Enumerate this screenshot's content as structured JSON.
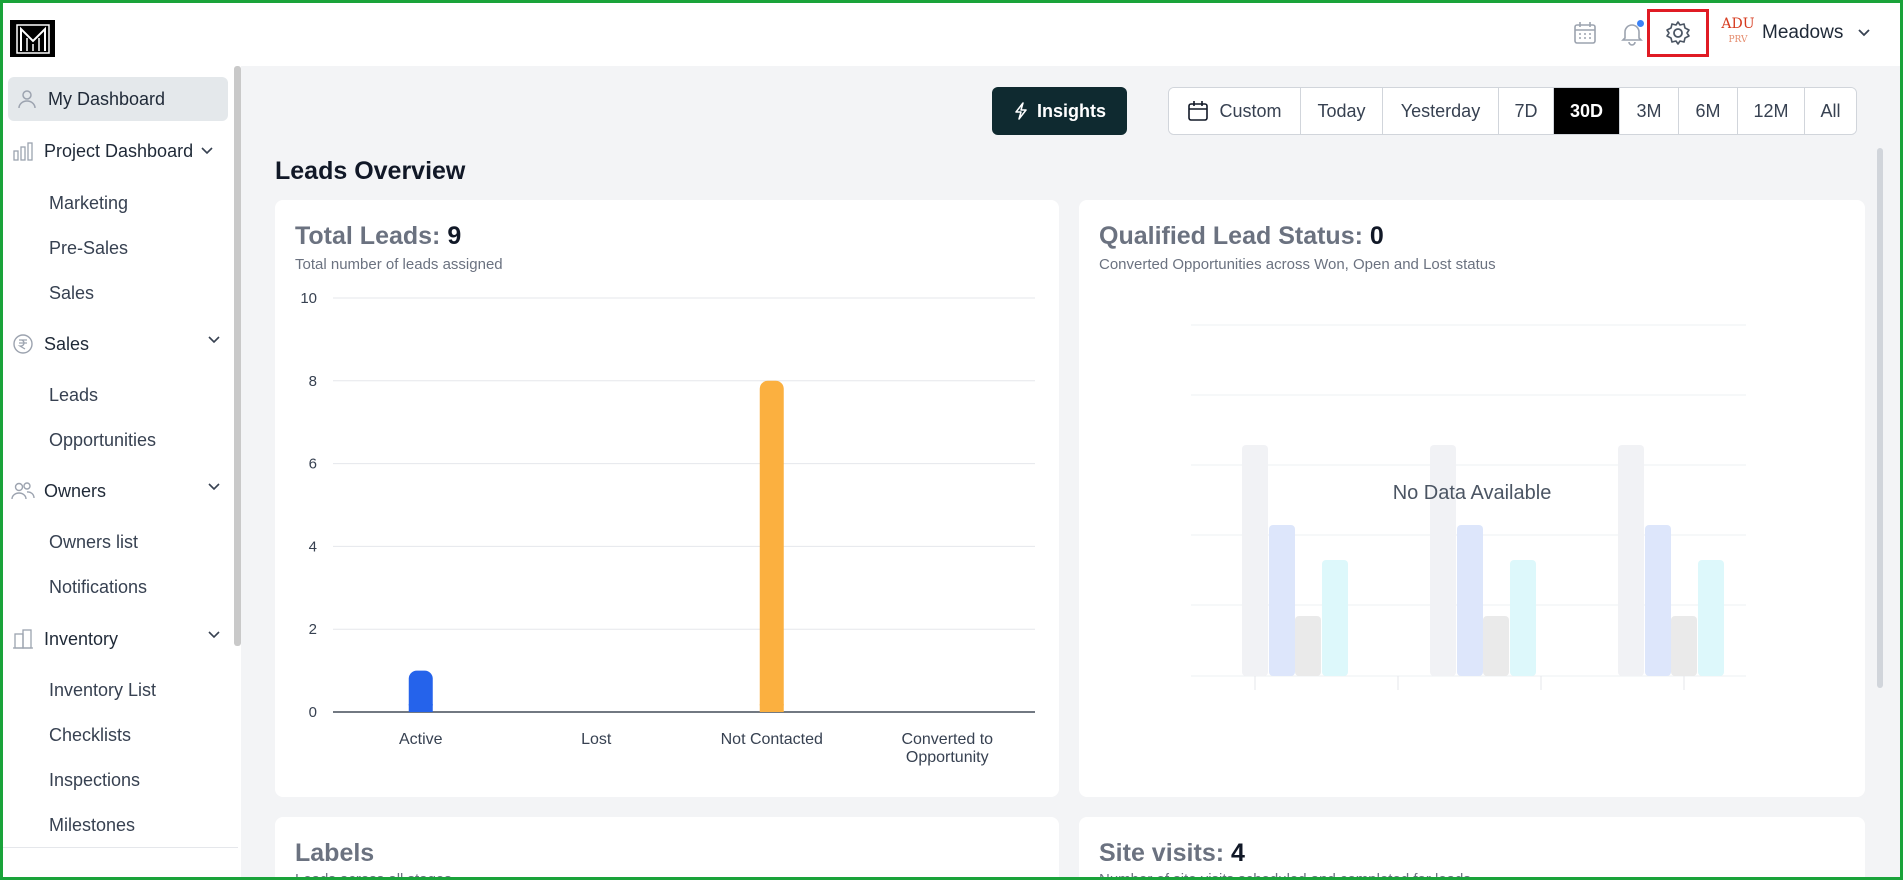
{
  "topbar": {
    "logo_text": "M",
    "icons": [
      "calendar-icon",
      "bell-icon",
      "gear-icon"
    ],
    "brand_logo_line1": "ADU",
    "brand_logo_line2": "PRV",
    "project_name": "Meadows"
  },
  "sidebar": {
    "items": [
      {
        "label": "My Dashboard",
        "icon": "user-icon",
        "active": true
      },
      {
        "label": "Project Dashboard",
        "icon": "bar-chart-icon",
        "children": [
          "Marketing",
          "Pre-Sales",
          "Sales"
        ]
      },
      {
        "label": "Sales",
        "icon": "rupee-icon",
        "children": [
          "Leads",
          "Opportunities"
        ]
      },
      {
        "label": "Owners",
        "icon": "users-icon",
        "children": [
          "Owners list",
          "Notifications"
        ]
      },
      {
        "label": "Inventory",
        "icon": "building-icon",
        "children": [
          "Inventory List",
          "Checklists",
          "Inspections",
          "Milestones"
        ]
      }
    ]
  },
  "toolbar": {
    "insights_label": "Insights",
    "ranges": [
      "Custom",
      "Today",
      "Yesterday",
      "7D",
      "30D",
      "3M",
      "6M",
      "12M",
      "All"
    ],
    "selected_range": "30D"
  },
  "overview": {
    "title": "Leads Overview",
    "total_leads": {
      "title": "Total Leads:",
      "value": "9",
      "subtitle": "Total number of leads assigned"
    },
    "qualified": {
      "title": "Qualified Lead Status:",
      "value": "0",
      "subtitle": "Converted Opportunities across Won, Open and Lost status",
      "empty_text": "No Data Available"
    },
    "labels": {
      "title": "Labels",
      "subtitle": "Leads across all stages"
    },
    "site_visits": {
      "title": "Site visits:",
      "value": "4",
      "subtitle": "Number of site visits scheduled and completed for leads"
    }
  },
  "chart_data": {
    "type": "bar",
    "categories": [
      "Active",
      "Lost",
      "Not Contacted",
      "Converted to Opportunity"
    ],
    "category_lines": [
      [
        "Active"
      ],
      [
        "Lost"
      ],
      [
        "Not Contacted"
      ],
      [
        "Converted to",
        "Opportunity"
      ]
    ],
    "values": [
      1,
      0,
      8,
      0
    ],
    "colors": [
      "#2563eb",
      "#2563eb",
      "#fbb040",
      "#2563eb"
    ],
    "ylim": [
      0,
      10
    ],
    "yticks": [
      0,
      2,
      4,
      6,
      8,
      10
    ],
    "grid": true
  }
}
